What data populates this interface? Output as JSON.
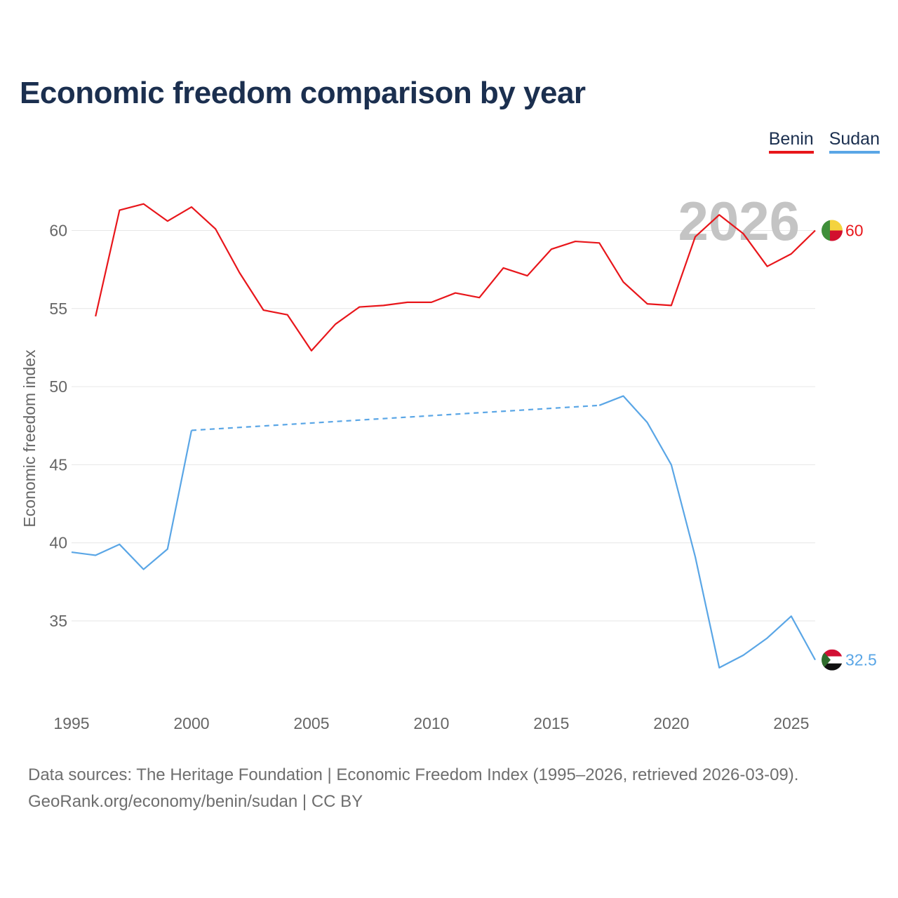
{
  "title": "Economic freedom comparison by year",
  "legend": [
    {
      "label": "Benin",
      "color": "#e8161b"
    },
    {
      "label": "Sudan",
      "color": "#5aa6e6"
    }
  ],
  "footer": {
    "line1": "Data sources: The Heritage Foundation | Economic Freedom Index (1995–2026, retrieved 2026-03-09).",
    "line2": "GeoRank.org/economy/benin/sudan | CC BY"
  },
  "chart_data": {
    "type": "line",
    "title": "Economic freedom comparison by year",
    "xlabel": "",
    "ylabel": "Economic freedom index",
    "xlim": [
      1995,
      2026
    ],
    "ylim": [
      30,
      64
    ],
    "x_ticks": [
      1995,
      2000,
      2005,
      2010,
      2015,
      2020,
      2025
    ],
    "y_ticks": [
      35,
      40,
      45,
      50,
      55,
      60
    ],
    "year_label": "2026",
    "series": [
      {
        "name": "Benin",
        "color": "#e8161b",
        "end_label": "60",
        "points": [
          [
            1996,
            54.5
          ],
          [
            1997,
            61.3
          ],
          [
            1998,
            61.7
          ],
          [
            1999,
            60.6
          ],
          [
            2000,
            61.5
          ],
          [
            2001,
            60.1
          ],
          [
            2002,
            57.3
          ],
          [
            2003,
            54.9
          ],
          [
            2004,
            54.6
          ],
          [
            2005,
            52.3
          ],
          [
            2006,
            54.0
          ],
          [
            2007,
            55.1
          ],
          [
            2008,
            55.2
          ],
          [
            2009,
            55.4
          ],
          [
            2010,
            55.4
          ],
          [
            2011,
            56.0
          ],
          [
            2012,
            55.7
          ],
          [
            2013,
            57.6
          ],
          [
            2014,
            57.1
          ],
          [
            2015,
            58.8
          ],
          [
            2016,
            59.3
          ],
          [
            2017,
            59.2
          ],
          [
            2018,
            56.7
          ],
          [
            2019,
            55.3
          ],
          [
            2020,
            55.2
          ],
          [
            2021,
            59.6
          ],
          [
            2022,
            61.0
          ],
          [
            2023,
            59.8
          ],
          [
            2024,
            57.7
          ],
          [
            2025,
            58.5
          ],
          [
            2026,
            60.0
          ]
        ]
      },
      {
        "name": "Sudan",
        "color": "#5aa6e6",
        "end_label": "32.5",
        "points": [
          [
            1995,
            39.4
          ],
          [
            1996,
            39.2
          ],
          [
            1997,
            39.9
          ],
          [
            1998,
            38.3
          ],
          [
            1999,
            39.6
          ],
          [
            2000,
            47.2
          ],
          [
            2017,
            48.8
          ],
          [
            2018,
            49.4
          ],
          [
            2019,
            47.7
          ],
          [
            2020,
            45.0
          ],
          [
            2021,
            39.1
          ],
          [
            2022,
            32.0
          ],
          [
            2023,
            32.8
          ],
          [
            2024,
            33.9
          ],
          [
            2025,
            35.3
          ],
          [
            2026,
            32.5
          ]
        ],
        "dashed_gap": [
          2000,
          2017
        ]
      }
    ]
  }
}
